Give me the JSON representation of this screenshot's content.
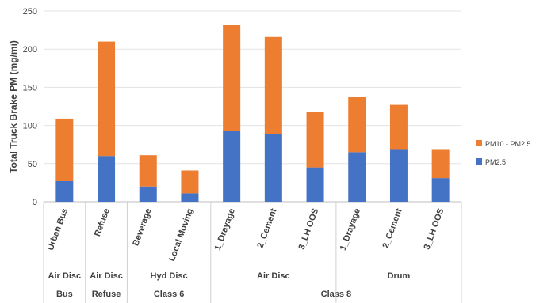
{
  "chart_data": {
    "type": "bar",
    "stacked": true,
    "title": "",
    "ylabel": "Total Truck Brake PM (mg/mi)",
    "xlabel": "",
    "ylim": [
      0,
      250
    ],
    "yticks": [
      0,
      50,
      100,
      150,
      200,
      250
    ],
    "grid": true,
    "legend_position": "right",
    "categories": [
      "Urban Bus",
      "Refuse",
      "Beverage",
      "Local Moving",
      "1_Drayage",
      "2_Cement",
      "3_LH OOS",
      "1_Drayage",
      "2_Cement",
      "3_LH OOS"
    ],
    "series": [
      {
        "name": "PM2.5",
        "color": "#4472C4",
        "values": [
          27,
          60,
          20,
          11,
          93,
          89,
          45,
          65,
          69,
          31
        ]
      },
      {
        "name": "PM10 - PM2.5",
        "color": "#ED7D31",
        "values": [
          82,
          150,
          41,
          30,
          139,
          127,
          73,
          72,
          58,
          38
        ]
      }
    ],
    "legend_order": [
      "PM10 - PM2.5",
      "PM2.5"
    ],
    "group_levels": [
      [
        {
          "label": "Air Disc",
          "span": [
            0,
            0
          ]
        },
        {
          "label": "Air Disc",
          "span": [
            1,
            1
          ]
        },
        {
          "label": "Hyd Disc",
          "span": [
            2,
            3
          ]
        },
        {
          "label": "Air Disc",
          "span": [
            4,
            6
          ]
        },
        {
          "label": "Drum",
          "span": [
            7,
            9
          ]
        }
      ],
      [
        {
          "label": "Bus",
          "span": [
            0,
            0
          ]
        },
        {
          "label": "Refuse",
          "span": [
            1,
            1
          ]
        },
        {
          "label": "Class 6",
          "span": [
            2,
            3
          ]
        },
        {
          "label": "Class 8",
          "span": [
            4,
            9
          ]
        }
      ]
    ]
  }
}
